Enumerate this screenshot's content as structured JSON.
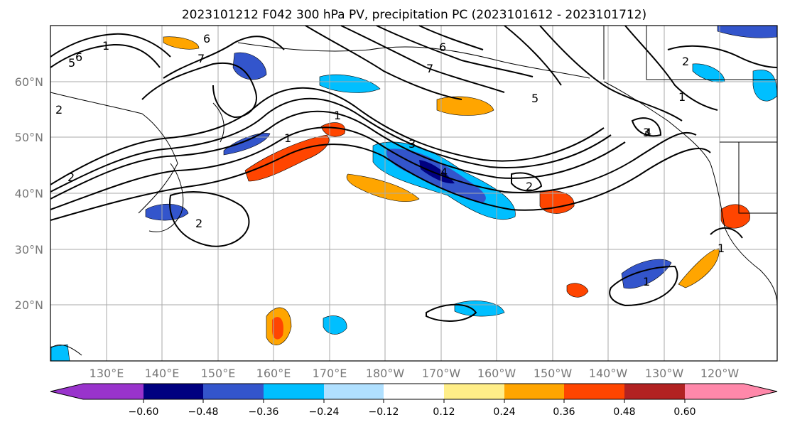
{
  "title": "2023101212 F042 300 hPa PV, precipitation PC (2023101612 - 2023101712)",
  "map": {
    "lat_labels": [
      "60°N",
      "50°N",
      "40°N",
      "30°N",
      "20°N"
    ],
    "lon_labels": [
      "130°E",
      "140°E",
      "150°E",
      "160°E",
      "170°E",
      "180°W",
      "170°W",
      "160°W",
      "150°W",
      "140°W",
      "130°W",
      "120°W"
    ],
    "contour_labels": [
      "6",
      "5",
      "6",
      "1",
      "7",
      "1",
      "1",
      "2",
      "2",
      "3",
      "4",
      "2",
      "1",
      "5",
      "3",
      "2",
      "4",
      "1",
      "1",
      "2",
      "7",
      "6"
    ]
  },
  "colorbar": {
    "colors": [
      "#9933cc",
      "#000080",
      "#3355cc",
      "#00bfff",
      "#b0e0ff",
      "#ffffff",
      "#ffee88",
      "#ffa500",
      "#ff4500",
      "#b22222",
      "#ff88aa"
    ],
    "tick_labels": [
      "−0.60",
      "−0.48",
      "−0.36",
      "−0.24",
      "−0.12",
      "0.12",
      "0.24",
      "0.36",
      "0.48",
      "0.60"
    ]
  }
}
